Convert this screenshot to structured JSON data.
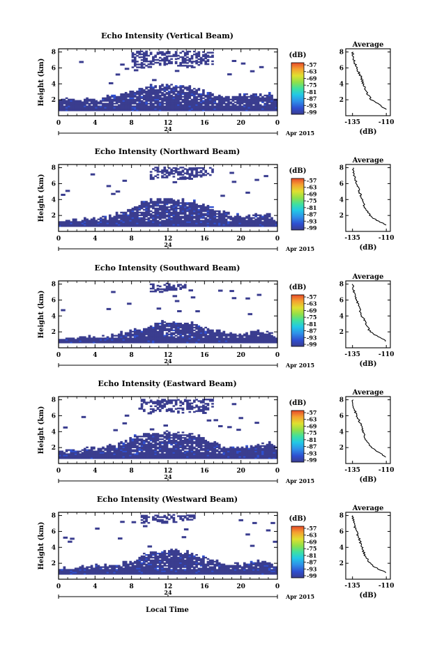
{
  "colormap": [
    "#3a3d8f",
    "#2f4fd0",
    "#2f8fe8",
    "#22c8e6",
    "#3fe0a0",
    "#8fe04a",
    "#e0e030",
    "#f5a030",
    "#e64a2a"
  ],
  "chart_data": [
    {
      "type": "heatmap",
      "title": "Echo Intensity (Vertical Beam)",
      "ylabel": "Height (km)",
      "x_ticks": [
        "0",
        "4",
        "8",
        "12",
        "16",
        "20",
        "0"
      ],
      "y_ticks": [
        "2",
        "4",
        "6",
        "8"
      ],
      "date_tick": "24",
      "date_label": "Apr 2015",
      "colorbar": {
        "label": "(dB)",
        "ticks": [
          "-57",
          "-63",
          "-69",
          "-75",
          "-81",
          "-87",
          "-93",
          "-99"
        ]
      },
      "profile": {
        "title": "Average",
        "xlabel": "(dB)",
        "x_ticks": [
          "-135",
          "-110"
        ],
        "y_ticks": [
          "2",
          "4",
          "6",
          "8"
        ]
      },
      "cloud_top_km": [
        1.8,
        2.0,
        1.9,
        2.1,
        2.0,
        2.3,
        2.5,
        2.6,
        3.0,
        3.4,
        3.6,
        3.8,
        3.8,
        3.7,
        3.6,
        3.3,
        3.0,
        2.6,
        2.3,
        2.2,
        2.5,
        2.4,
        2.6,
        2.8
      ],
      "upper_layer_km": [
        null,
        null,
        null,
        null,
        null,
        null,
        null,
        null,
        [
          6.0,
          8.0
        ],
        [
          6.2,
          8.0
        ],
        [
          6.4,
          8.0
        ],
        [
          6.3,
          8.0
        ],
        [
          6.5,
          8.0
        ],
        [
          6.2,
          8.0
        ],
        [
          6.0,
          8.0
        ],
        [
          6.3,
          8.0
        ],
        [
          6.4,
          8.0
        ],
        null,
        null,
        null,
        null,
        null,
        null,
        null
      ],
      "profile_db": [
        [
          0.8,
          -110
        ],
        [
          1.5,
          -116
        ],
        [
          2.0,
          -121
        ],
        [
          3.0,
          -125
        ],
        [
          4.0,
          -127
        ],
        [
          5.0,
          -129
        ],
        [
          6.0,
          -132
        ],
        [
          7.0,
          -134
        ],
        [
          8.0,
          -135
        ]
      ]
    },
    {
      "type": "heatmap",
      "title": "Echo Intensity (Northward Beam)",
      "ylabel": "Height (km)",
      "x_ticks": [
        "0",
        "4",
        "8",
        "12",
        "16",
        "20",
        "0"
      ],
      "y_ticks": [
        "2",
        "4",
        "6",
        "8"
      ],
      "date_tick": "24",
      "date_label": "Apr 2015",
      "colorbar": {
        "label": "(dB)",
        "ticks": [
          "-57",
          "-63",
          "-69",
          "-75",
          "-81",
          "-87",
          "-93",
          "-99"
        ]
      },
      "profile": {
        "title": "Average",
        "xlabel": "(dB)",
        "x_ticks": [
          "-135",
          "-110"
        ],
        "y_ticks": [
          "2",
          "4",
          "6",
          "8"
        ]
      },
      "cloud_top_km": [
        1.3,
        1.4,
        1.3,
        1.5,
        1.6,
        1.7,
        2.0,
        2.4,
        3.0,
        3.5,
        3.8,
        3.9,
        4.0,
        3.9,
        3.8,
        3.6,
        3.2,
        2.8,
        2.4,
        2.0,
        1.9,
        2.0,
        2.2,
        2.0
      ],
      "upper_layer_km": [
        null,
        null,
        null,
        null,
        null,
        null,
        null,
        null,
        null,
        null,
        [
          6.5,
          8.0
        ],
        [
          6.7,
          8.0
        ],
        [
          6.8,
          8.0
        ],
        [
          6.5,
          8.0
        ],
        [
          6.6,
          8.0
        ],
        [
          6.8,
          8.0
        ],
        [
          7.0,
          8.0
        ],
        null,
        null,
        null,
        null,
        null,
        null,
        null
      ],
      "profile_db": [
        [
          0.8,
          -110
        ],
        [
          1.5,
          -118
        ],
        [
          2.0,
          -122
        ],
        [
          3.0,
          -126
        ],
        [
          4.0,
          -128
        ],
        [
          5.0,
          -130
        ],
        [
          6.0,
          -132
        ],
        [
          7.0,
          -134
        ],
        [
          8.0,
          -135
        ]
      ]
    },
    {
      "type": "heatmap",
      "title": "Echo Intensity (Southward Beam)",
      "ylabel": "Height (km)",
      "x_ticks": [
        "0",
        "4",
        "8",
        "12",
        "16",
        "20",
        "0"
      ],
      "y_ticks": [
        "2",
        "4",
        "6",
        "8"
      ],
      "date_tick": "24",
      "date_label": "Apr 2015",
      "colorbar": {
        "label": "(dB)",
        "ticks": [
          "-57",
          "-63",
          "-69",
          "-75",
          "-81",
          "-87",
          "-93",
          "-99"
        ]
      },
      "profile": {
        "title": "Average",
        "xlabel": "(dB)",
        "x_ticks": [
          "-135",
          "-110"
        ],
        "y_ticks": [
          "2",
          "4",
          "6",
          "8"
        ]
      },
      "cloud_top_km": [
        1.1,
        1.2,
        1.1,
        1.2,
        1.3,
        1.5,
        1.6,
        1.8,
        2.1,
        2.3,
        2.8,
        3.2,
        3.3,
        3.2,
        3.1,
        2.8,
        2.5,
        2.2,
        1.9,
        1.7,
        1.6,
        1.8,
        2.0,
        1.9
      ],
      "upper_layer_km": [
        null,
        null,
        null,
        null,
        null,
        null,
        null,
        null,
        null,
        null,
        [
          7.0,
          8.0
        ],
        [
          7.1,
          8.0
        ],
        [
          7.2,
          8.0
        ],
        [
          7.3,
          8.0
        ],
        null,
        null,
        null,
        null,
        null,
        null,
        null,
        null,
        null,
        null
      ],
      "profile_db": [
        [
          0.8,
          -110
        ],
        [
          1.5,
          -117
        ],
        [
          2.0,
          -122
        ],
        [
          3.0,
          -125
        ],
        [
          4.0,
          -128
        ],
        [
          5.0,
          -130
        ],
        [
          6.0,
          -132
        ],
        [
          7.0,
          -134
        ],
        [
          8.0,
          -135
        ]
      ]
    },
    {
      "type": "heatmap",
      "title": "Echo Intensity (Eastward Beam)",
      "ylabel": "Height (km)",
      "x_ticks": [
        "0",
        "4",
        "8",
        "12",
        "16",
        "20",
        "0"
      ],
      "y_ticks": [
        "2",
        "4",
        "6",
        "8"
      ],
      "date_tick": "24",
      "date_label": "Apr 2015",
      "colorbar": {
        "label": "(dB)",
        "ticks": [
          "-57",
          "-63",
          "-69",
          "-75",
          "-81",
          "-87",
          "-93",
          "-99"
        ]
      },
      "profile": {
        "title": "Average",
        "xlabel": "(dB)",
        "x_ticks": [
          "-135",
          "-110"
        ],
        "y_ticks": [
          "2",
          "4",
          "6",
          "8"
        ]
      },
      "cloud_top_km": [
        1.6,
        1.7,
        1.6,
        1.8,
        1.9,
        2.0,
        2.2,
        2.6,
        3.2,
        3.6,
        3.8,
        3.8,
        3.8,
        3.8,
        3.7,
        3.5,
        3.0,
        2.5,
        2.2,
        2.0,
        2.0,
        2.2,
        2.4,
        2.6
      ],
      "upper_layer_km": [
        null,
        null,
        null,
        null,
        null,
        null,
        null,
        null,
        null,
        [
          6.5,
          8.0
        ],
        [
          6.4,
          8.0
        ],
        [
          6.5,
          8.0
        ],
        [
          6.6,
          8.0
        ],
        [
          6.3,
          8.0
        ],
        [
          6.4,
          8.0
        ],
        [
          6.5,
          8.0
        ],
        [
          6.7,
          8.0
        ],
        null,
        null,
        null,
        null,
        null,
        null,
        null
      ],
      "profile_db": [
        [
          0.8,
          -110
        ],
        [
          1.5,
          -117
        ],
        [
          2.0,
          -121
        ],
        [
          3.0,
          -125
        ],
        [
          4.0,
          -127
        ],
        [
          5.0,
          -129
        ],
        [
          6.0,
          -132
        ],
        [
          7.0,
          -134
        ],
        [
          8.0,
          -135
        ]
      ]
    },
    {
      "type": "heatmap",
      "title": "Echo Intensity (Westward Beam)",
      "ylabel": "Height (km)",
      "x_ticks": [
        "0",
        "4",
        "8",
        "12",
        "16",
        "20",
        "0"
      ],
      "y_ticks": [
        "2",
        "4",
        "6",
        "8"
      ],
      "date_tick": "24",
      "date_label": "Apr 2015",
      "colorbar": {
        "label": "(dB)",
        "ticks": [
          "-57",
          "-63",
          "-69",
          "-75",
          "-81",
          "-87",
          "-93",
          "-99"
        ]
      },
      "profile": {
        "title": "Average",
        "xlabel": "(dB)",
        "x_ticks": [
          "-135",
          "-110"
        ],
        "y_ticks": [
          "2",
          "4",
          "6",
          "8"
        ]
      },
      "cloud_top_km": [
        1.3,
        1.4,
        1.3,
        1.5,
        1.6,
        1.7,
        1.8,
        2.0,
        2.3,
        2.8,
        3.4,
        3.5,
        3.5,
        3.4,
        3.3,
        3.0,
        2.6,
        2.2,
        1.9,
        1.8,
        1.8,
        2.0,
        2.2,
        2.0
      ],
      "upper_layer_km": [
        null,
        null,
        null,
        null,
        null,
        null,
        null,
        null,
        null,
        [
          7.0,
          8.0
        ],
        [
          7.2,
          8.0
        ],
        [
          7.0,
          8.0
        ],
        [
          7.1,
          8.0
        ],
        [
          7.3,
          8.0
        ],
        [
          7.4,
          8.0
        ],
        null,
        null,
        null,
        null,
        null,
        null,
        null,
        null,
        null
      ],
      "profile_db": [
        [
          0.8,
          -110
        ],
        [
          1.5,
          -118
        ],
        [
          2.0,
          -122
        ],
        [
          3.0,
          -126
        ],
        [
          4.0,
          -128
        ],
        [
          5.0,
          -130
        ],
        [
          6.0,
          -132
        ],
        [
          7.0,
          -134
        ],
        [
          8.0,
          -135
        ]
      ]
    }
  ],
  "footer": {
    "xlabel": "Local Time"
  }
}
